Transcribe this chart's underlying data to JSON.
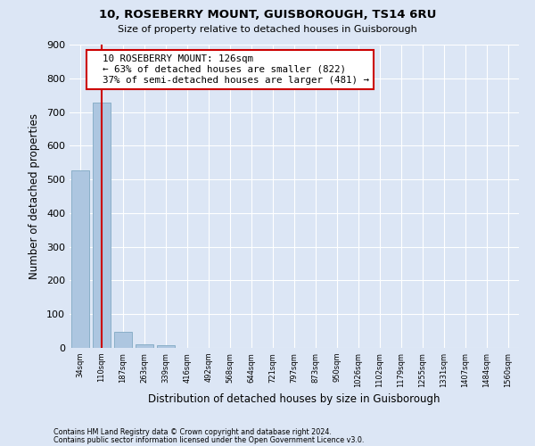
{
  "title": "10, ROSEBERRY MOUNT, GUISBOROUGH, TS14 6RU",
  "subtitle": "Size of property relative to detached houses in Guisborough",
  "xlabel": "Distribution of detached houses by size in Guisborough",
  "ylabel": "Number of detached properties",
  "property_label": "10 ROSEBERRY MOUNT: 126sqm",
  "pct_smaller": 63,
  "n_smaller": 822,
  "pct_larger": 37,
  "n_larger": 481,
  "footnote1": "Contains HM Land Registry data © Crown copyright and database right 2024.",
  "footnote2": "Contains public sector information licensed under the Open Government Licence v3.0.",
  "bin_labels": [
    "34sqm",
    "110sqm",
    "187sqm",
    "263sqm",
    "339sqm",
    "416sqm",
    "492sqm",
    "568sqm",
    "644sqm",
    "721sqm",
    "797sqm",
    "873sqm",
    "950sqm",
    "1026sqm",
    "1102sqm",
    "1179sqm",
    "1255sqm",
    "1331sqm",
    "1407sqm",
    "1484sqm",
    "1560sqm"
  ],
  "bin_values": [
    527,
    727,
    48,
    11,
    9,
    0,
    0,
    0,
    0,
    0,
    0,
    0,
    0,
    0,
    0,
    0,
    0,
    0,
    0,
    0,
    0
  ],
  "bar_color": "#adc6e0",
  "bar_edge_color": "#8aafc8",
  "vline_color": "#cc0000",
  "vline_x": 1.0,
  "background_color": "#dce6f5",
  "grid_color": "#ffffff",
  "box_edge_color": "#cc0000",
  "box_face_color": "#ffffff",
  "ylim": [
    0,
    900
  ],
  "yticks": [
    0,
    100,
    200,
    300,
    400,
    500,
    600,
    700,
    800,
    900
  ]
}
